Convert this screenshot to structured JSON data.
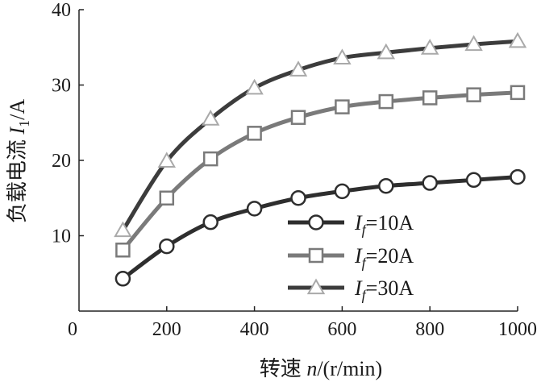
{
  "chart_data": {
    "type": "line",
    "title": "",
    "xlabel": {
      "prefix": "转速 ",
      "var": "n",
      "suffix": "/(r/min)"
    },
    "ylabel": {
      "prefix": "负载电流 ",
      "var": "I",
      "sub": "1",
      "suffix": "/A"
    },
    "xlim": [
      0,
      1000
    ],
    "ylim": [
      0,
      40
    ],
    "x": [
      100,
      200,
      300,
      400,
      500,
      600,
      700,
      800,
      900,
      1000
    ],
    "x_ticks": [
      200,
      400,
      600,
      800,
      1000
    ],
    "y_ticks": [
      10,
      20,
      30,
      40
    ],
    "origin_label": "0",
    "grid": false,
    "legend_position": "bottom-right",
    "series": [
      {
        "name": "If=10A",
        "label_var": "I",
        "label_sub": "f",
        "label_rest": "=10A",
        "marker": "circle",
        "color": "#2e2e2e",
        "values": [
          4.3,
          8.6,
          11.8,
          13.6,
          15.0,
          15.9,
          16.6,
          17.0,
          17.4,
          17.8
        ]
      },
      {
        "name": "If=20A",
        "label_var": "I",
        "label_sub": "f",
        "label_rest": "=20A",
        "marker": "square",
        "color": "#7a7a7a",
        "values": [
          8.1,
          15.0,
          20.2,
          23.6,
          25.7,
          27.1,
          27.8,
          28.3,
          28.7,
          29.0
        ]
      },
      {
        "name": "If=30A",
        "label_var": "I",
        "label_sub": "f",
        "label_rest": "=30A",
        "marker": "triangle",
        "color": "#3c3c3c",
        "values": [
          10.7,
          19.9,
          25.5,
          29.6,
          32.0,
          33.6,
          34.3,
          34.9,
          35.4,
          35.8
        ]
      }
    ]
  }
}
